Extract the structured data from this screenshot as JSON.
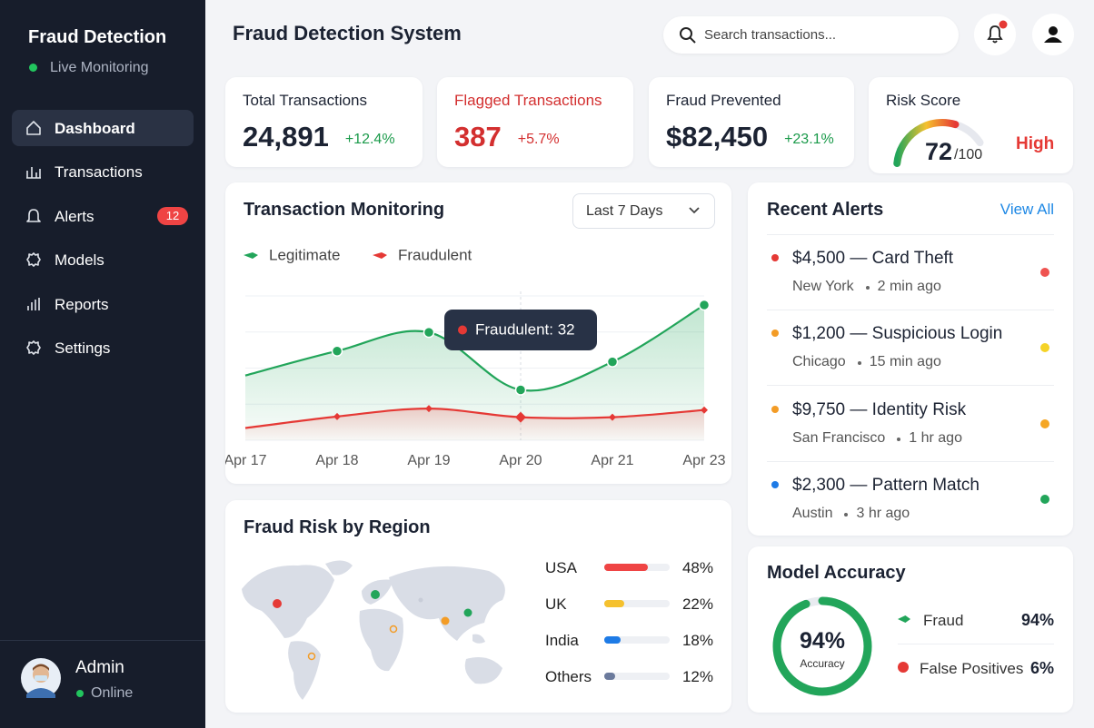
{
  "sidebar": {
    "brand": "Fraud Detection",
    "status": "Live Monitoring",
    "nav": [
      {
        "label": "Dashboard",
        "active": true
      },
      {
        "label": "Transactions"
      },
      {
        "label": "Alerts",
        "badge": 12
      },
      {
        "label": "Models"
      },
      {
        "label": "Reports"
      },
      {
        "label": "Settings"
      }
    ],
    "user": {
      "name": "Admin",
      "status": "Online"
    }
  },
  "header": {
    "title": "Fraud Detection System",
    "search_placeholder": "Search transactions..."
  },
  "kpis": [
    {
      "label": "Total Transactions",
      "value": "24,891",
      "change": "+12.4%"
    },
    {
      "label": "Flagged Transactions",
      "value": "387",
      "change": "+5.7%",
      "alert": true
    },
    {
      "label": "Fraud Prevented",
      "value": "$82,450",
      "change": "+23.1%"
    }
  ],
  "risk": {
    "label": "Risk Score",
    "score": 72,
    "max": {
      "value": 100,
      "label": "/100"
    },
    "level": "High"
  },
  "monitoring": {
    "title": "Transaction Monitoring",
    "range": "Last 7 Days",
    "chart_data": {
      "type": "line",
      "categories": [
        "Apr 17",
        "Apr 18",
        "Apr 19",
        "Apr 20",
        "Apr 21",
        "Apr 23"
      ],
      "series": [
        {
          "name": "Legitimate",
          "color": "#22a55a",
          "values": [
            90,
            124,
            150,
            70,
            109,
            188
          ]
        },
        {
          "name": "Fraudulent",
          "color": "#e53935",
          "values": [
            17,
            33,
            44,
            32,
            32,
            42
          ]
        }
      ],
      "tooltip": {
        "series": 1,
        "index": 3,
        "text": "Fraudulent: 32"
      }
    }
  },
  "region": {
    "title": "Fraud Risk by Region",
    "rows": [
      {
        "name": "USA",
        "share": {
          "value": 48,
          "label": "48%"
        },
        "color": "#ef4444"
      },
      {
        "name": "UK",
        "share": {
          "value": 22,
          "label": "22%"
        },
        "color": "#f5c12e"
      },
      {
        "name": "India",
        "share": {
          "value": 18,
          "label": "18%"
        },
        "color": "#1e7be6"
      },
      {
        "name": "Others",
        "share": {
          "value": 12,
          "label": "12%"
        },
        "color": "#6b7a9c"
      }
    ]
  },
  "alerts": {
    "title": "Recent Alerts",
    "view_all": "View All",
    "items": [
      {
        "title": "$4,500 — Card Theft",
        "location": "New York",
        "time": "2 min ago",
        "color": "#e53935",
        "status_color": "#ef5350"
      },
      {
        "title": "$1,200 — Suspicious Login",
        "location": "Chicago",
        "time": "15 min ago",
        "color": "#f39c26",
        "status_color": "#f5d327"
      },
      {
        "title": "$9,750 — Identity Risk",
        "location": "San Francisco",
        "time": "1 hr ago",
        "color": "#f39c26",
        "status_color": "#f5a623"
      },
      {
        "title": "$2,300 — Pattern Match",
        "location": "Austin",
        "time": "3 hr ago",
        "color": "#1e7be6",
        "status_color": "#22a55a"
      }
    ]
  },
  "model_accuracy": {
    "title": "Model Accuracy",
    "center": {
      "value": 94,
      "label": "94%"
    },
    "caption": "Accuracy",
    "legend": [
      {
        "name": "Fraud",
        "value": "94%",
        "color": "#22a55a"
      },
      {
        "name": "False Positives",
        "value": "6%",
        "color": "#e53935"
      }
    ]
  }
}
